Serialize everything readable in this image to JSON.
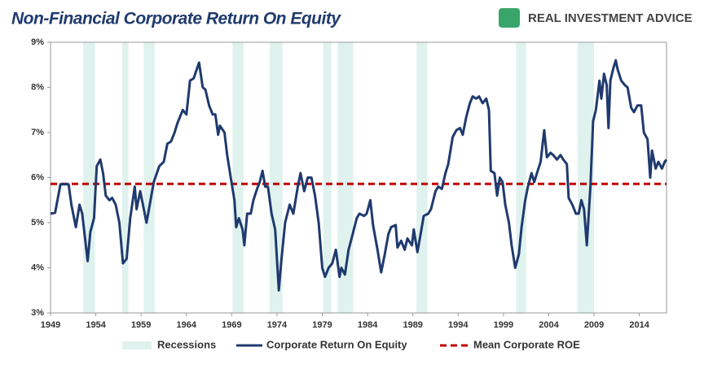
{
  "chart_data": {
    "type": "line",
    "title": "Non-Financial Corporate Return On Equity",
    "logo": "REAL INVESTMENT ADVICE",
    "xlim": [
      1949,
      2017
    ],
    "xticks": [
      1949,
      1954,
      1959,
      1964,
      1969,
      1974,
      1979,
      1984,
      1989,
      1994,
      1999,
      2004,
      2009,
      2014
    ],
    "ylim": [
      3,
      9
    ],
    "yticks": [
      {
        "value": 3,
        "label": "3%"
      },
      {
        "value": 4,
        "label": "4%"
      },
      {
        "value": 5,
        "label": "5%"
      },
      {
        "value": 6,
        "label": "6%"
      },
      {
        "value": 7,
        "label": "7%"
      },
      {
        "value": 8,
        "label": "8%"
      },
      {
        "value": 9,
        "label": "9%"
      }
    ],
    "recessions": {
      "name": "Recessions",
      "color": "#dff2ee",
      "spans": [
        [
          1952.6,
          1953.9
        ],
        [
          1956.9,
          1957.6
        ],
        [
          1959.3,
          1960.5
        ],
        [
          1969.1,
          1970.3
        ],
        [
          1973.2,
          1974.6
        ],
        [
          1979.1,
          1980.0
        ],
        [
          1980.7,
          1982.4
        ],
        [
          1989.4,
          1990.6
        ],
        [
          2000.4,
          2001.5
        ],
        [
          2007.2,
          2009.0
        ]
      ]
    },
    "mean": {
      "name": "Mean Corporate ROE",
      "value": 5.86,
      "color": "#c00000"
    },
    "x": [
      1949.0,
      1949.5,
      1950.1,
      1951.0,
      1951.3,
      1951.8,
      1952.2,
      1952.5,
      1953.1,
      1953.4,
      1953.8,
      1954.1,
      1954.5,
      1954.8,
      1955.1,
      1955.5,
      1955.8,
      1956.2,
      1956.6,
      1957.0,
      1957.4,
      1957.8,
      1958.3,
      1958.5,
      1958.9,
      1959.3,
      1959.6,
      1960.0,
      1960.4,
      1961.0,
      1961.5,
      1961.9,
      1962.3,
      1962.7,
      1963.0,
      1963.6,
      1964.0,
      1964.4,
      1964.8,
      1965.4,
      1965.8,
      1966.1,
      1966.5,
      1966.9,
      1967.2,
      1967.5,
      1967.7,
      1968.2,
      1968.5,
      1968.9,
      1969.3,
      1969.5,
      1969.8,
      1970.2,
      1970.4,
      1970.7,
      1971.1,
      1971.4,
      1971.8,
      1972.1,
      1972.4,
      1972.7,
      1973.0,
      1973.4,
      1973.8,
      1974.2,
      1974.5,
      1974.9,
      1975.4,
      1975.8,
      1976.3,
      1976.6,
      1977.0,
      1977.4,
      1977.8,
      1978.2,
      1978.6,
      1979.0,
      1979.3,
      1979.7,
      1980.1,
      1980.5,
      1980.9,
      1981.1,
      1981.5,
      1981.9,
      1982.3,
      1982.8,
      1983.1,
      1983.6,
      1983.9,
      1984.3,
      1984.6,
      1985.1,
      1985.5,
      1985.9,
      1986.3,
      1986.6,
      1987.1,
      1987.3,
      1987.7,
      1988.1,
      1988.4,
      1988.9,
      1989.1,
      1989.5,
      1989.9,
      1990.2,
      1990.7,
      1991.0,
      1991.5,
      1991.8,
      1992.2,
      1992.6,
      1992.9,
      1993.4,
      1993.8,
      1994.2,
      1994.5,
      1994.9,
      1995.3,
      1995.6,
      1996.0,
      1996.3,
      1996.7,
      1997.1,
      1997.4,
      1997.6,
      1998.0,
      1998.3,
      1998.6,
      1998.9,
      1999.2,
      1999.6,
      1999.9,
      2000.3,
      2000.7,
      2001.0,
      2001.4,
      2001.7,
      2002.1,
      2002.4,
      2002.7,
      2003.1,
      2003.5,
      2003.8,
      2004.2,
      2004.5,
      2004.9,
      2005.3,
      2005.6,
      2006.0,
      2006.2,
      2006.6,
      2007.0,
      2007.3,
      2007.6,
      2007.9,
      2008.2,
      2008.6,
      2008.9,
      2009.2,
      2009.6,
      2009.8,
      2010.1,
      2010.4,
      2010.6,
      2010.8,
      2011.1,
      2011.4,
      2011.6,
      2012.0,
      2012.4,
      2012.7,
      2013.1,
      2013.4,
      2013.8,
      2014.2,
      2014.5,
      2014.9,
      2015.2,
      2015.4,
      2015.8,
      2016.1,
      2016.5,
      2016.8,
      2017.0
    ],
    "series": [
      {
        "name": "Corporate Return On Equity",
        "color": "#1f3a6e",
        "values": [
          5.2,
          5.22,
          5.85,
          5.85,
          5.4,
          4.9,
          5.4,
          5.2,
          4.15,
          4.8,
          5.1,
          6.25,
          6.4,
          6.1,
          5.6,
          5.5,
          5.55,
          5.4,
          5.0,
          4.1,
          4.2,
          5.1,
          5.8,
          5.3,
          5.7,
          5.3,
          5.0,
          5.45,
          5.9,
          6.25,
          6.35,
          6.75,
          6.8,
          7.0,
          7.2,
          7.5,
          7.4,
          8.15,
          8.2,
          8.55,
          8.0,
          7.95,
          7.6,
          7.4,
          7.4,
          6.95,
          7.15,
          7.0,
          6.5,
          6.0,
          5.5,
          4.9,
          5.1,
          4.85,
          4.5,
          5.2,
          5.2,
          5.5,
          5.75,
          5.9,
          6.15,
          5.8,
          5.8,
          5.2,
          4.85,
          3.5,
          4.2,
          5.0,
          5.4,
          5.2,
          5.8,
          6.1,
          5.7,
          6.0,
          6.0,
          5.6,
          5.0,
          4.0,
          3.8,
          4.0,
          4.1,
          4.4,
          3.8,
          4.0,
          3.85,
          4.4,
          4.7,
          5.1,
          5.2,
          5.15,
          5.2,
          5.5,
          4.95,
          4.4,
          3.9,
          4.3,
          4.75,
          4.9,
          4.95,
          4.45,
          4.6,
          4.4,
          4.65,
          4.5,
          4.85,
          4.35,
          4.8,
          5.15,
          5.2,
          5.3,
          5.7,
          5.8,
          5.75,
          6.1,
          6.3,
          6.9,
          7.05,
          7.1,
          6.95,
          7.35,
          7.65,
          7.8,
          7.75,
          7.8,
          7.65,
          7.75,
          7.5,
          6.15,
          6.1,
          5.6,
          6.0,
          5.9,
          5.4,
          5.0,
          4.5,
          4.0,
          4.3,
          4.9,
          5.5,
          5.8,
          6.1,
          5.9,
          6.1,
          6.35,
          7.05,
          6.45,
          6.55,
          6.5,
          6.4,
          6.5,
          6.4,
          6.3,
          5.55,
          5.4,
          5.2,
          5.2,
          5.5,
          5.3,
          4.5,
          5.8,
          7.25,
          7.5,
          8.15,
          7.75,
          8.3,
          8.05,
          7.1,
          8.15,
          8.4,
          8.6,
          8.4,
          8.15,
          8.05,
          8.0,
          7.55,
          7.45,
          7.6,
          7.6,
          7.0,
          6.85,
          6.0,
          6.6,
          6.2,
          6.35,
          6.2,
          6.35,
          6.4
        ]
      }
    ]
  }
}
